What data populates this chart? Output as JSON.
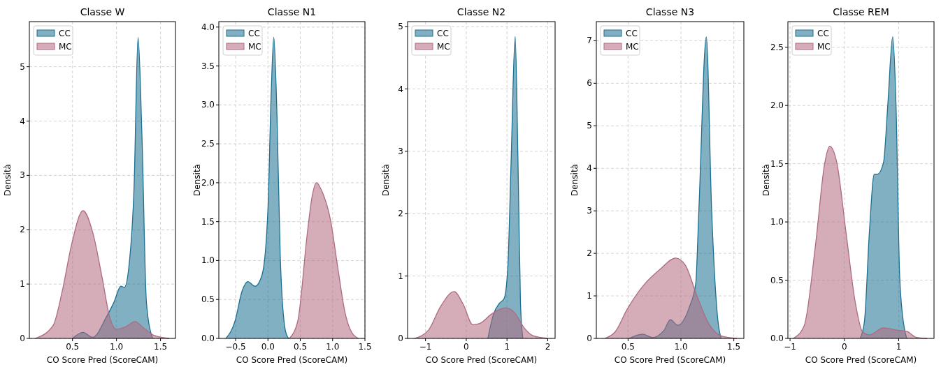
{
  "chart_data": [
    {
      "type": "area",
      "title": "Classe W",
      "xlabel": "CO Score Pred (ScoreCAM)",
      "ylabel": "Densità",
      "xlim": [
        0.01,
        1.67
      ],
      "xticks": [
        0.5,
        {
          "value": 1,
          "label": "1.0"
        },
        1.5
      ],
      "ylim": [
        0,
        5.83
      ],
      "yticks": [
        0,
        1,
        2,
        3,
        4,
        5
      ],
      "grid": true,
      "legend": "top left",
      "series": [
        {
          "name": "CC",
          "color": "#1b6f91",
          "x": [
            0.5,
            0.62,
            0.73,
            0.89,
            0.97,
            1.05,
            1.09,
            1.14,
            1.2,
            1.245,
            1.29,
            1.34,
            1.41
          ],
          "values": [
            0,
            0.11,
            0.02,
            0.41,
            0.66,
            0.96,
            0.94,
            1.31,
            2.81,
            5.54,
            3.67,
            0.66,
            0
          ]
        },
        {
          "name": "MC",
          "color": "#b06a7f",
          "x": [
            0.08,
            0.28,
            0.385,
            0.49,
            0.62,
            0.73,
            0.84,
            0.92,
            1.0,
            1.1,
            1.21,
            1.31,
            1.42,
            1.6
          ],
          "values": [
            0,
            0.24,
            0.88,
            1.73,
            2.35,
            1.95,
            1.09,
            0.41,
            0.17,
            0.21,
            0.31,
            0.19,
            0.06,
            0
          ]
        }
      ]
    },
    {
      "type": "area",
      "title": "Classe N1",
      "xlabel": "CO Score Pred (ScoreCAM)",
      "ylabel": "Densità",
      "xlim": [
        -0.76,
        1.5
      ],
      "xticks": [
        {
          "value": -0.5,
          "label": "−0.5"
        },
        {
          "value": 0,
          "label": "0.0"
        },
        0.5,
        {
          "value": 1,
          "label": "1.0"
        },
        1.5
      ],
      "ylim": [
        0,
        4.07
      ],
      "yticks": [
        {
          "value": 0,
          "label": "0.0"
        },
        0.5,
        {
          "value": 1,
          "label": "1.0"
        },
        1.5,
        {
          "value": 2,
          "label": "2.0"
        },
        2.5,
        {
          "value": 3,
          "label": "3.0"
        },
        3.5,
        {
          "value": 4,
          "label": "4.0"
        }
      ],
      "grid": true,
      "legend": "top left",
      "series": [
        {
          "name": "CC",
          "color": "#1b6f91",
          "x": [
            -0.65,
            -0.51,
            -0.4,
            -0.31,
            -0.2,
            -0.09,
            0,
            0.05,
            0.09,
            0.14,
            0.19,
            0.27,
            0.32
          ],
          "values": [
            0,
            0.22,
            0.61,
            0.73,
            0.67,
            0.82,
            1.66,
            3.15,
            3.87,
            2.85,
            1.06,
            0.1,
            0
          ]
        },
        {
          "name": "MC",
          "color": "#b06a7f",
          "x": [
            0.33,
            0.46,
            0.61,
            0.68,
            0.75,
            0.83,
            0.97,
            1.08,
            1.19,
            1.3,
            1.4
          ],
          "values": [
            0,
            0.22,
            1.36,
            1.81,
            2.0,
            1.9,
            1.51,
            0.91,
            0.34,
            0.07,
            0
          ]
        }
      ]
    },
    {
      "type": "area",
      "title": "Classe N2",
      "xlabel": "CO Score Pred (ScoreCAM)",
      "ylabel": "Densità",
      "xlim": [
        -1.44,
        2.18
      ],
      "xticks": [
        {
          "value": -1,
          "label": "−1"
        },
        0,
        1,
        2
      ],
      "ylim": [
        0,
        5.08
      ],
      "yticks": [
        0,
        1,
        2,
        3,
        4,
        5
      ],
      "grid": true,
      "legend": "top left",
      "series": [
        {
          "name": "CC",
          "color": "#1b6f91",
          "x": [
            0.53,
            0.67,
            0.81,
            0.93,
            1.02,
            1.1,
            1.2,
            1.27,
            1.33,
            1.39
          ],
          "values": [
            0,
            0.39,
            0.56,
            0.64,
            1.14,
            2.82,
            4.84,
            2.82,
            0.58,
            0
          ]
        },
        {
          "name": "MC",
          "color": "#b06a7f",
          "x": [
            -1.27,
            -0.93,
            -0.64,
            -0.3,
            -0.07,
            0.16,
            0.33,
            0.62,
            0.96,
            1.19,
            1.42,
            1.65,
            1.99
          ],
          "values": [
            0,
            0.13,
            0.5,
            0.75,
            0.54,
            0.22,
            0.24,
            0.39,
            0.49,
            0.41,
            0.17,
            0.04,
            0
          ]
        }
      ]
    },
    {
      "type": "area",
      "title": "Classe N3",
      "xlabel": "CO Score Pred (ScoreCAM)",
      "ylabel": "Densità",
      "xlim": [
        0.2,
        1.595
      ],
      "xticks": [
        0.5,
        {
          "value": 1,
          "label": "1.0"
        },
        1.5
      ],
      "ylim": [
        0,
        7.45
      ],
      "yticks": [
        0,
        1,
        2,
        3,
        4,
        5,
        6,
        7
      ],
      "grid": true,
      "legend": "top left",
      "series": [
        {
          "name": "CC",
          "color": "#1b6f91",
          "x": [
            0.51,
            0.64,
            0.73,
            0.84,
            0.9,
            0.97,
            1.08,
            1.14,
            1.17,
            1.24,
            1.29,
            1.35,
            1.38
          ],
          "values": [
            0,
            0.1,
            0.02,
            0.19,
            0.44,
            0.31,
            0.74,
            1.29,
            3.04,
            7.09,
            3.04,
            0.41,
            0
          ]
        },
        {
          "name": "MC",
          "color": "#b06a7f",
          "x": [
            0.28,
            0.38,
            0.49,
            0.64,
            0.8,
            0.95,
            1.04,
            1.15,
            1.26,
            1.39,
            1.53
          ],
          "values": [
            0,
            0.16,
            0.68,
            1.23,
            1.62,
            1.89,
            1.73,
            1.01,
            0.36,
            0.05,
            0
          ]
        }
      ]
    },
    {
      "type": "area",
      "title": "Classe REM",
      "xlabel": "CO Score Pred (ScoreCAM)",
      "ylabel": "Densità",
      "xlim": [
        -1.04,
        1.65
      ],
      "xticks": [
        {
          "value": -1,
          "label": "−1"
        },
        0,
        1
      ],
      "ylim": [
        0,
        2.72
      ],
      "yticks": [
        {
          "value": 0,
          "label": "0.0"
        },
        0.5,
        {
          "value": 1,
          "label": "1.0"
        },
        1.5,
        {
          "value": 2,
          "label": "2.0"
        },
        2.5
      ],
      "grid": true,
      "legend": "top left",
      "series": [
        {
          "name": "CC",
          "color": "#1b6f91",
          "x": [
            0.29,
            0.37,
            0.46,
            0.55,
            0.61,
            0.72,
            0.8,
            0.89,
            0.95,
            1.02,
            1.11,
            1.15
          ],
          "values": [
            0,
            0.15,
            0.91,
            1.41,
            1.41,
            1.51,
            2.01,
            2.59,
            2.01,
            0.51,
            0.07,
            0
          ]
        },
        {
          "name": "MC",
          "color": "#b06a7f",
          "x": [
            -0.94,
            -0.74,
            -0.53,
            -0.36,
            -0.27,
            -0.14,
            0.03,
            0.2,
            0.33,
            0.46,
            0.72,
            0.98,
            1.15,
            1.32,
            1.52
          ],
          "values": [
            0,
            0.11,
            0.81,
            1.51,
            1.65,
            1.51,
            0.91,
            0.31,
            0.06,
            0.03,
            0.09,
            0.07,
            0.06,
            0.01,
            0
          ]
        }
      ]
    }
  ]
}
